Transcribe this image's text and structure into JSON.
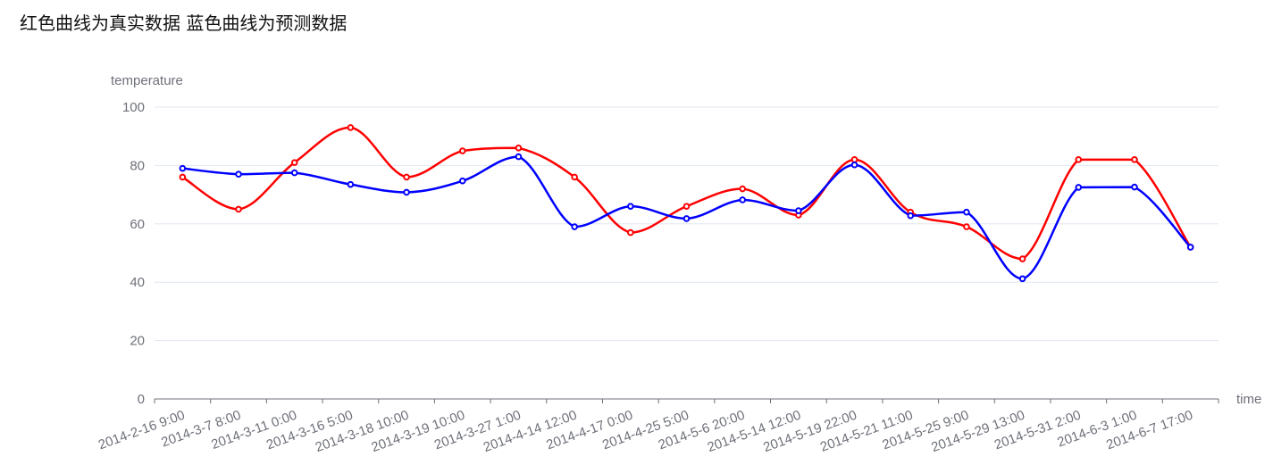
{
  "page": {
    "title": "红色曲线为真实数据 蓝色曲线为预测数据"
  },
  "chart_data": {
    "type": "line",
    "xlabel": "time",
    "ylabel": "temperature",
    "ylim": [
      0,
      100
    ],
    "yticks": [
      0,
      20,
      40,
      60,
      80,
      100
    ],
    "grid": "horizontal",
    "smooth": true,
    "categories": [
      "2014-2-16 9:00",
      "2014-3-7 8:00",
      "2014-3-11 0:00",
      "2014-3-16 5:00",
      "2014-3-18 10:00",
      "2014-3-19 10:00",
      "2014-3-27 1:00",
      "2014-4-14 12:00",
      "2014-4-17 0:00",
      "2014-4-25 5:00",
      "2014-5-6 20:00",
      "2014-5-14 12:00",
      "2014-5-19 22:00",
      "2014-5-21 11:00",
      "2014-5-25 9:00",
      "2014-5-29 13:00",
      "2014-5-31 2:00",
      "2014-6-3 1:00",
      "2014-6-7 17:00"
    ],
    "series": [
      {
        "color": "#ff0000",
        "values": [
          76,
          65,
          81,
          93,
          76,
          85,
          86,
          76,
          57,
          66,
          72,
          63,
          82,
          64,
          59,
          48,
          82,
          82,
          52
        ]
      },
      {
        "color": "#0000ff",
        "values": [
          79,
          77,
          77.5,
          73.5,
          70.8,
          74.7,
          83,
          59,
          66,
          61.8,
          68.2,
          64.5,
          80.2,
          62.8,
          64,
          41.2,
          72.5,
          72.6,
          52
        ]
      }
    ]
  }
}
